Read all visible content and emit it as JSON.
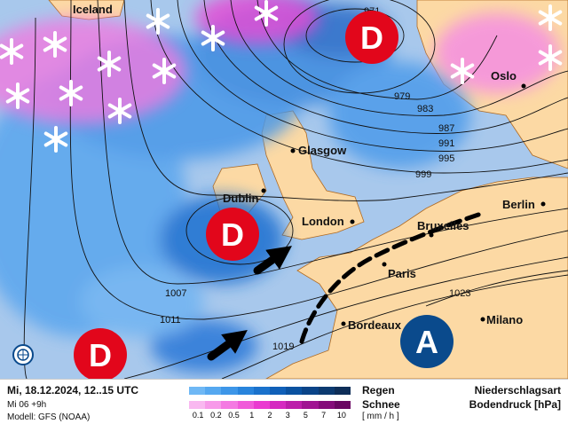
{
  "map": {
    "colors": {
      "sea": "#a8c8ec",
      "land": "#fcd9a4",
      "low": "#e2061b",
      "high": "#0a4a8c",
      "border": "#b06a20"
    },
    "cities": [
      "Iceland",
      "Oslo",
      "Glasgow",
      "Dublin",
      "London",
      "Berlin",
      "Bruxelles",
      "Paris",
      "Bordeaux",
      "Milano"
    ],
    "isobars": [
      "971",
      "979",
      "983",
      "987",
      "991",
      "995",
      "999",
      "1007",
      "1011",
      "1019",
      "1023"
    ],
    "pressure_centers": [
      {
        "type": "low",
        "label": "D"
      },
      {
        "type": "low",
        "label": "D"
      },
      {
        "type": "low",
        "label": "D"
      },
      {
        "type": "high",
        "label": "A"
      }
    ],
    "icons": [
      "snowflake-icon",
      "wind-arrow-icon",
      "cold-front-line",
      "globe-logo-icon"
    ]
  },
  "legend": {
    "date": "Mi, 18.12.2024, 12..15 UTC",
    "run": "Mi 06 +9h",
    "model": "Modell: GFS (NOAA)",
    "rain_label": "Regen",
    "snow_label": "Schnee",
    "unit": "[ mm / h ]",
    "ticks": [
      "0.1",
      "0.2",
      "0.5",
      "1",
      "2",
      "3",
      "5",
      "7",
      "10"
    ],
    "rain_colors": [
      "#6fb8f5",
      "#55a8f0",
      "#3d96e8",
      "#2884dc",
      "#1a72cc",
      "#1060b8",
      "#0a52a0",
      "#0a4488",
      "#0c3a70",
      "#0e2e58"
    ],
    "snow_colors": [
      "#f9b8f0",
      "#f79ae9",
      "#f47ae2",
      "#f05ad9",
      "#ea3ad0",
      "#d52ac0",
      "#bc1eaa",
      "#a01492",
      "#850c7a",
      "#6a0662"
    ],
    "title1": "Niederschlagsart",
    "title2": "Bodendruck [hPa]"
  }
}
